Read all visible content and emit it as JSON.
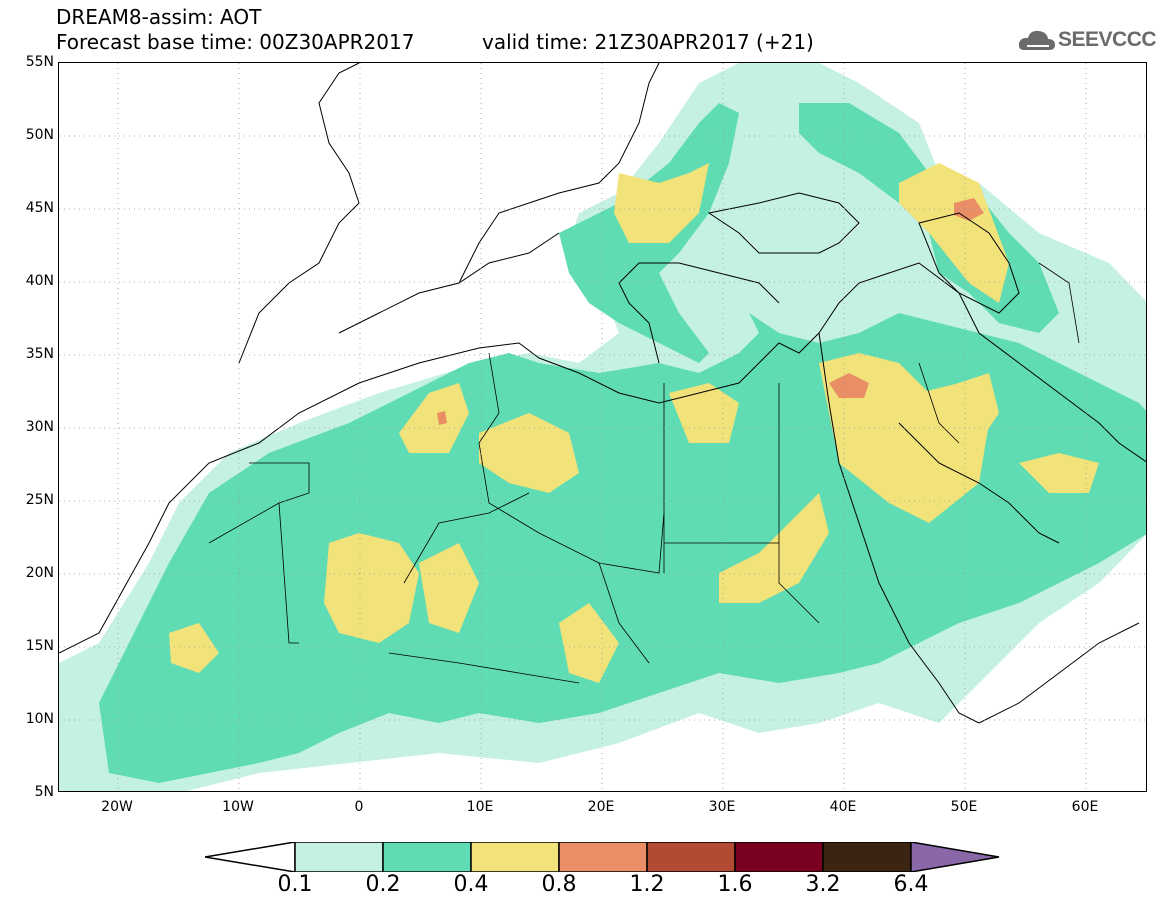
{
  "header": {
    "title_line1": "DREAM8-assim: AOT",
    "title_line2": "Forecast base time: 00Z30APR2017",
    "valid_time": "valid time: 21Z30APR2017 (+21)",
    "logo_text": "SEEVCCC"
  },
  "axes": {
    "lat_labels": [
      "55N",
      "50N",
      "45N",
      "40N",
      "35N",
      "30N",
      "25N",
      "20N",
      "15N",
      "10N",
      "5N"
    ],
    "lon_labels": [
      "20W",
      "10W",
      "0",
      "10E",
      "20E",
      "30E",
      "40E",
      "50E",
      "60E"
    ]
  },
  "legend": {
    "labels": [
      "0.1",
      "0.2",
      "0.4",
      "0.8",
      "1.2",
      "1.6",
      "3.2",
      "6.4"
    ],
    "colors": [
      "#c5f0e4",
      "#5fdcb4",
      "#f2e27a",
      "#ea8e66",
      "#b24a34",
      "#7a0020",
      "#3b2412",
      "#8a68a8"
    ]
  },
  "colors": {
    "light": "#c5f0e4",
    "green": "#5fdcb4",
    "yellow": "#f2e27a",
    "orange": "#ea8e66"
  }
}
